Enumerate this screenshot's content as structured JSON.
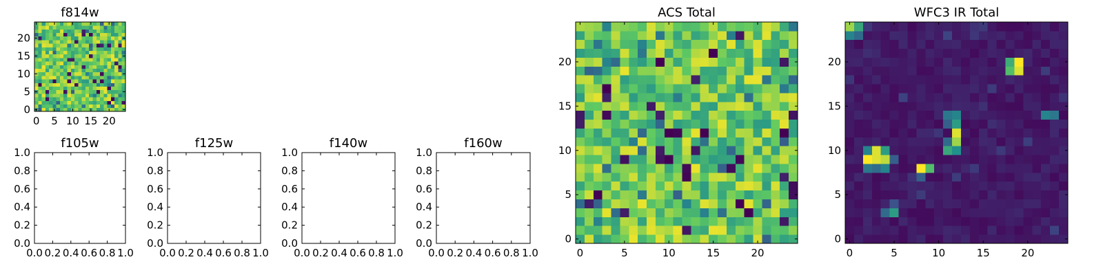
{
  "figure": {
    "width": 1600,
    "height": 400
  },
  "colormap": {
    "name": "viridis",
    "stops": [
      "#440154",
      "#3b528b",
      "#21918c",
      "#5ec962",
      "#fde725"
    ]
  },
  "chart_data": [
    {
      "id": "f814w",
      "type": "heatmap",
      "title": "f814w",
      "xlabel": "",
      "ylabel": "",
      "grid_size": 25,
      "xlim": [
        -0.5,
        24.5
      ],
      "ylim": [
        -0.5,
        24.5
      ],
      "xticks": [
        0,
        5,
        10,
        15,
        20
      ],
      "xticklabels": [
        "0",
        "5",
        "10",
        "15",
        "20"
      ],
      "yticks": [
        0,
        5,
        10,
        15,
        20
      ],
      "yticklabels": [
        "0",
        "5",
        "10",
        "15",
        "20"
      ],
      "value_range": [
        0,
        1
      ],
      "profile": "acs",
      "seed": 814,
      "description_values": "25x25 pixel cutout; mostly high (green-yellow) values with scattered low (dark) pixels"
    },
    {
      "id": "f105w",
      "type": "empty",
      "title": "f105w",
      "xlim": [
        0,
        1
      ],
      "ylim": [
        0,
        1
      ],
      "xticks": [
        0,
        0.2,
        0.4,
        0.6,
        0.8,
        1.0
      ],
      "xticklabels": [
        "0.0",
        "0.2",
        "0.4",
        "0.6",
        "0.8",
        "1.0"
      ],
      "yticks": [
        0,
        0.2,
        0.4,
        0.6,
        0.8,
        1.0
      ],
      "yticklabels": [
        "0.0",
        "0.2",
        "0.4",
        "0.6",
        "0.8",
        "1.0"
      ]
    },
    {
      "id": "f125w",
      "type": "empty",
      "title": "f125w",
      "xlim": [
        0,
        1
      ],
      "ylim": [
        0,
        1
      ],
      "xticks": [
        0,
        0.2,
        0.4,
        0.6,
        0.8,
        1.0
      ],
      "xticklabels": [
        "0.0",
        "0.2",
        "0.4",
        "0.6",
        "0.8",
        "1.0"
      ],
      "yticks": [
        0,
        0.2,
        0.4,
        0.6,
        0.8,
        1.0
      ],
      "yticklabels": [
        "0.0",
        "0.2",
        "0.4",
        "0.6",
        "0.8",
        "1.0"
      ]
    },
    {
      "id": "f140w",
      "type": "empty",
      "title": "f140w",
      "xlim": [
        0,
        1
      ],
      "ylim": [
        0,
        1
      ],
      "xticks": [
        0,
        0.2,
        0.4,
        0.6,
        0.8,
        1.0
      ],
      "xticklabels": [
        "0.0",
        "0.2",
        "0.4",
        "0.6",
        "0.8",
        "1.0"
      ],
      "yticks": [
        0,
        0.2,
        0.4,
        0.6,
        0.8,
        1.0
      ],
      "yticklabels": [
        "0.0",
        "0.2",
        "0.4",
        "0.6",
        "0.8",
        "1.0"
      ]
    },
    {
      "id": "f160w",
      "type": "empty",
      "title": "f160w",
      "xlim": [
        0,
        1
      ],
      "ylim": [
        0,
        1
      ],
      "xticks": [
        0,
        0.2,
        0.4,
        0.6,
        0.8,
        1.0
      ],
      "xticklabels": [
        "0.0",
        "0.2",
        "0.4",
        "0.6",
        "0.8",
        "1.0"
      ],
      "yticks": [
        0,
        0.2,
        0.4,
        0.6,
        0.8,
        1.0
      ],
      "yticklabels": [
        "0.0",
        "0.2",
        "0.4",
        "0.6",
        "0.8",
        "1.0"
      ]
    },
    {
      "id": "acs-total",
      "type": "heatmap",
      "title": "ACS Total",
      "xlabel": "",
      "ylabel": "",
      "grid_size": 25,
      "xlim": [
        -0.5,
        24.5
      ],
      "ylim": [
        -0.5,
        24.5
      ],
      "xticks": [
        0,
        5,
        10,
        15,
        20
      ],
      "xticklabels": [
        "0",
        "5",
        "10",
        "15",
        "20"
      ],
      "yticks": [
        0,
        5,
        10,
        15,
        20
      ],
      "yticklabels": [
        "0",
        "5",
        "10",
        "15",
        "20"
      ],
      "value_range": [
        0,
        1
      ],
      "profile": "acs",
      "seed": 1234,
      "low_pixels": [
        [
          3,
          17
        ],
        [
          9,
          20
        ],
        [
          10,
          12
        ],
        [
          10,
          9
        ],
        [
          14,
          12
        ],
        [
          15,
          21
        ],
        [
          18,
          4
        ],
        [
          19,
          3
        ],
        [
          23,
          12
        ],
        [
          2,
          5
        ]
      ]
    },
    {
      "id": "wfc3-ir-total",
      "type": "heatmap",
      "title": "WFC3 IR Total",
      "xlabel": "",
      "ylabel": "",
      "grid_size": 25,
      "xlim": [
        -0.5,
        24.5
      ],
      "ylim": [
        -0.5,
        24.5
      ],
      "xticks": [
        0,
        5,
        10,
        15,
        20
      ],
      "xticklabels": [
        "0",
        "5",
        "10",
        "15",
        "20"
      ],
      "yticks": [
        0,
        5,
        10,
        15,
        20
      ],
      "yticklabels": [
        "0",
        "5",
        "10",
        "15",
        "20"
      ],
      "value_range": [
        0,
        1
      ],
      "profile": "wfc3",
      "seed": 4321,
      "bright_pixels": [
        {
          "x": 0,
          "y": 24,
          "v": 0.85
        },
        {
          "x": 1,
          "y": 24,
          "v": 0.6
        },
        {
          "x": 0,
          "y": 23,
          "v": 0.45
        },
        {
          "x": 1,
          "y": 23,
          "v": 0.35
        },
        {
          "x": 18,
          "y": 20,
          "v": 0.62
        },
        {
          "x": 19,
          "y": 20,
          "v": 1.0
        },
        {
          "x": 18,
          "y": 19,
          "v": 0.7
        },
        {
          "x": 19,
          "y": 19,
          "v": 0.95
        },
        {
          "x": 22,
          "y": 14,
          "v": 0.45
        },
        {
          "x": 23,
          "y": 14,
          "v": 0.4
        },
        {
          "x": 11,
          "y": 14,
          "v": 0.4
        },
        {
          "x": 12,
          "y": 14,
          "v": 0.45
        },
        {
          "x": 12,
          "y": 13,
          "v": 0.55
        },
        {
          "x": 11,
          "y": 13,
          "v": 0.3
        },
        {
          "x": 12,
          "y": 12,
          "v": 0.95
        },
        {
          "x": 12,
          "y": 11,
          "v": 0.85
        },
        {
          "x": 11,
          "y": 11,
          "v": 0.35
        },
        {
          "x": 11,
          "y": 10,
          "v": 0.6
        },
        {
          "x": 12,
          "y": 10,
          "v": 0.5
        },
        {
          "x": 2,
          "y": 10,
          "v": 0.45
        },
        {
          "x": 3,
          "y": 10,
          "v": 0.95
        },
        {
          "x": 4,
          "y": 10,
          "v": 0.55
        },
        {
          "x": 2,
          "y": 9,
          "v": 1.0
        },
        {
          "x": 3,
          "y": 9,
          "v": 0.95
        },
        {
          "x": 4,
          "y": 9,
          "v": 0.9
        },
        {
          "x": 5,
          "y": 9,
          "v": 0.3
        },
        {
          "x": 2,
          "y": 8,
          "v": 0.4
        },
        {
          "x": 3,
          "y": 8,
          "v": 0.35
        },
        {
          "x": 4,
          "y": 8,
          "v": 0.45
        },
        {
          "x": 8,
          "y": 8,
          "v": 1.0
        },
        {
          "x": 9,
          "y": 8,
          "v": 0.7
        },
        {
          "x": 8,
          "y": 7,
          "v": 0.3
        },
        {
          "x": 4,
          "y": 3,
          "v": 0.35
        },
        {
          "x": 5,
          "y": 3,
          "v": 0.55
        },
        {
          "x": 5,
          "y": 4,
          "v": 0.25
        }
      ]
    }
  ]
}
